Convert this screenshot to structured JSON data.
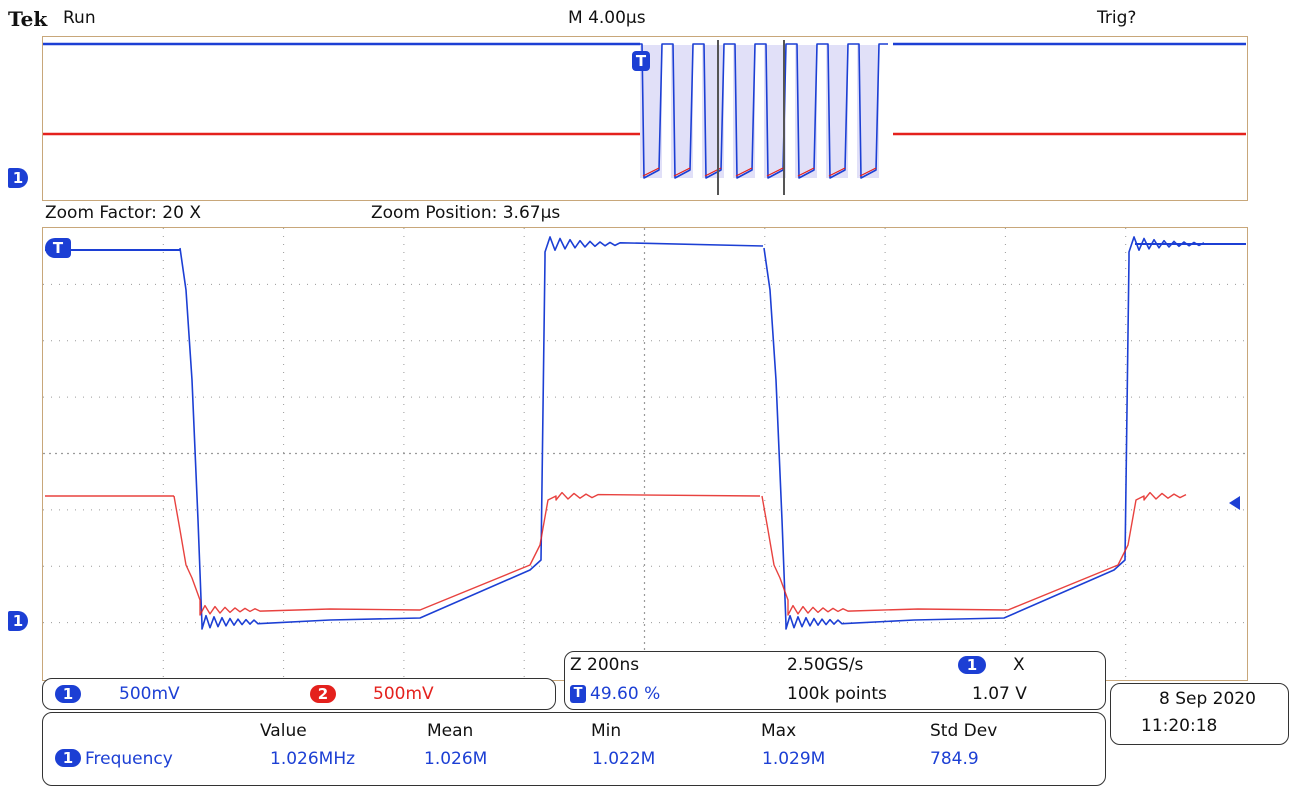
{
  "header": {
    "brand": "Tek",
    "run_state": "Run",
    "timebase": "M 4.00µs",
    "trigger_status": "Trig?"
  },
  "zoom": {
    "factor_label": "Zoom Factor: 20 X",
    "position_label": "Zoom Position: 3.67µs"
  },
  "markers": {
    "ch1_marker": "1",
    "trigger_marker": "T"
  },
  "channels": [
    {
      "num": "1",
      "scale": "500mV",
      "color": "#1c3fd4"
    },
    {
      "num": "2",
      "scale": "500mV",
      "color": "#e4211d"
    }
  ],
  "acquisition": {
    "zoom_timebase": "Z 200ns",
    "sample_rate": "2.50GS/s",
    "trigger_source_num": "1",
    "trigger_coupling_symbol": "X",
    "trigger_position": "49.60 %",
    "record_length": "100k points",
    "trigger_level": "1.07 V"
  },
  "datetime": {
    "date": "8 Sep  2020",
    "time": "11:20:18"
  },
  "measurements": {
    "headers": [
      "Value",
      "Mean",
      "Min",
      "Max",
      "Std Dev"
    ],
    "rows": [
      {
        "source": "1",
        "name": "Frequency",
        "value": "1.026MHz",
        "mean": "1.026M",
        "min": "1.022M",
        "max": "1.029M",
        "std_dev": "784.9"
      }
    ]
  },
  "colors": {
    "ch1": "#1c3fd4",
    "ch2": "#e4211d",
    "frame": "#c8a77a",
    "grid": "#9a9a9a"
  }
}
